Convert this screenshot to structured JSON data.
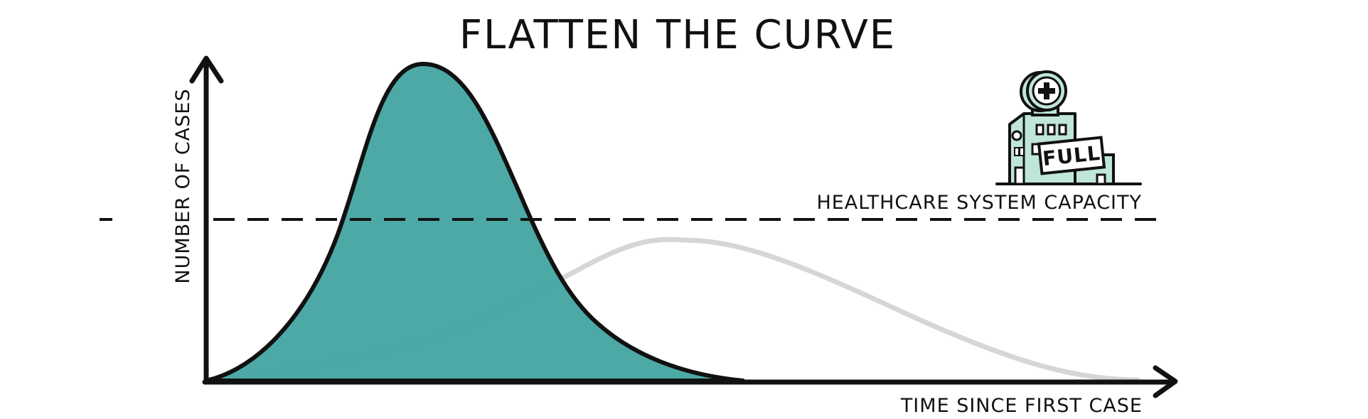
{
  "title": "FLATTEN THE CURVE",
  "y_axis_label": "NUMBER OF CASES",
  "x_axis_label": "TIME SINCE FIRST CASE",
  "capacity_label": "HEALTHCARE SYSTEM CAPACITY",
  "hospital_sign": "FULL",
  "colors": {
    "ink": "#111111",
    "steep_curve_fill": "#47a6a3",
    "flat_curve_stroke": "#d6d6d6",
    "hospital_fill": "#bfe6d7"
  },
  "icons": {
    "hospital": "hospital-building-icon",
    "medical_cross": "medical-cross-icon"
  }
}
